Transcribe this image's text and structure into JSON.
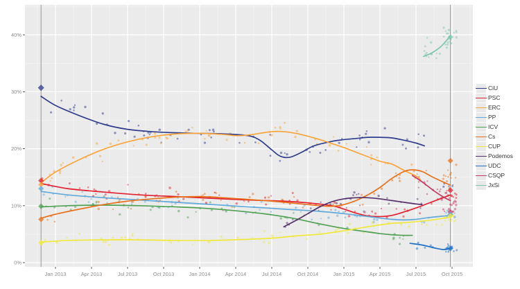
{
  "chart_data": {
    "type": "scatter",
    "title": "",
    "xlabel": "",
    "ylabel": "",
    "layout": {
      "grid": "on",
      "legend_position": "right",
      "panel_bg": "#EBEBEB",
      "x_range_months": [
        "2012-10-15",
        "2015-11-20"
      ],
      "ylim": [
        0,
        45
      ]
    },
    "x_axis": {
      "ticks": [
        {
          "date": "2013-01",
          "label": "Jan 2013"
        },
        {
          "date": "2013-04",
          "label": "Apr 2013"
        },
        {
          "date": "2013-07",
          "label": "Jul 2013"
        },
        {
          "date": "2013-10",
          "label": "Oct 2013"
        },
        {
          "date": "2014-01",
          "label": "Jan 2014"
        },
        {
          "date": "2014-04",
          "label": "Apr 2014"
        },
        {
          "date": "2014-07",
          "label": "Jul 2014"
        },
        {
          "date": "2014-10",
          "label": "Oct 2014"
        },
        {
          "date": "2015-01",
          "label": "Jan 2015"
        },
        {
          "date": "2015-04",
          "label": "Apr 2015"
        },
        {
          "date": "2015-07",
          "label": "Jul 2015"
        },
        {
          "date": "2015-10",
          "label": "Oct 2015"
        }
      ]
    },
    "y_axis": {
      "ticks": [
        {
          "pct": 0,
          "label": "0%"
        },
        {
          "pct": 10,
          "label": "10%"
        },
        {
          "pct": 20,
          "label": "20%"
        },
        {
          "pct": 30,
          "label": "30%"
        },
        {
          "pct": 40,
          "label": "40%"
        }
      ]
    },
    "reference_lines": [
      "2012-11-25",
      "2015-09-27"
    ],
    "elections": [
      {
        "date": "2012-11-25",
        "results": {
          "CiU": 30.7,
          "PSC": 14.4,
          "ERC": 13.7,
          "PP": 13.0,
          "ICV": 9.9,
          "Cs": 7.6,
          "CUP": 3.5
        }
      },
      {
        "date": "2015-09-27",
        "results": {
          "JxSi": 39.6,
          "Cs": 17.9,
          "PSC": 12.7,
          "CSQP": 8.9,
          "PP": 8.5,
          "CUP": 8.2,
          "UDC": 2.5
        }
      }
    ],
    "series": [
      {
        "name": "CiU",
        "color": "#2F3C8C",
        "trend": [
          [
            "2012-11-25",
            29.2
          ],
          [
            "2013-01",
            27.6
          ],
          [
            "2013-03",
            25.8
          ],
          [
            "2013-05",
            24.3
          ],
          [
            "2013-07",
            23.4
          ],
          [
            "2013-09",
            23.0
          ],
          [
            "2013-11",
            22.8
          ],
          [
            "2014-01",
            22.7
          ],
          [
            "2014-03",
            22.6
          ],
          [
            "2014-05",
            22.3
          ],
          [
            "2014-06",
            21.5
          ],
          [
            "2014-07",
            19.8
          ],
          [
            "2014-07-22",
            18.7
          ],
          [
            "2014-08-16",
            18.5
          ],
          [
            "2014-09-16",
            19.4
          ],
          [
            "2014-10-16",
            20.5
          ],
          [
            "2014-12",
            21.3
          ],
          [
            "2015-01",
            21.6
          ],
          [
            "2015-02",
            21.8
          ],
          [
            "2015-03",
            22.0
          ],
          [
            "2015-04",
            22.0
          ],
          [
            "2015-05",
            21.9
          ],
          [
            "2015-06",
            21.5
          ],
          [
            "2015-07",
            21.0
          ],
          [
            "2015-07-22",
            20.5
          ]
        ],
        "scatter": {
          "n": 64,
          "spread": 2.4,
          "end_cluster": {
            "n": 6,
            "pct": 13.0,
            "spread": 2.0
          }
        }
      },
      {
        "name": "PSC",
        "color": "#E2202F",
        "trend": [
          [
            "2012-11-25",
            13.9
          ],
          [
            "2013-02",
            13.0
          ],
          [
            "2013-05",
            12.4
          ],
          [
            "2013-08",
            11.9
          ],
          [
            "2013-11",
            11.6
          ],
          [
            "2014-02",
            11.3
          ],
          [
            "2014-05",
            11.0
          ],
          [
            "2014-08",
            10.8
          ],
          [
            "2014-10",
            10.5
          ],
          [
            "2014-12",
            10.0
          ],
          [
            "2015-01",
            9.4
          ],
          [
            "2015-02",
            8.7
          ],
          [
            "2015-03",
            8.2
          ],
          [
            "2015-04",
            8.1
          ],
          [
            "2015-05",
            8.3
          ],
          [
            "2015-06",
            8.9
          ],
          [
            "2015-07",
            9.6
          ],
          [
            "2015-08",
            10.4
          ],
          [
            "2015-09",
            11.2
          ],
          [
            "2015-09-27",
            11.9
          ]
        ],
        "scatter": {
          "n": 62,
          "spread": 1.6,
          "end_cluster": {
            "n": 10,
            "pct": 12.0,
            "spread": 1.2
          }
        }
      },
      {
        "name": "ERC",
        "color": "#FAA43A",
        "trend": [
          [
            "2012-11-25",
            14.0
          ],
          [
            "2013-01",
            15.9
          ],
          [
            "2013-03",
            18.1
          ],
          [
            "2013-05",
            19.9
          ],
          [
            "2013-07",
            21.2
          ],
          [
            "2013-09",
            22.1
          ],
          [
            "2013-11",
            22.6
          ],
          [
            "2014-01",
            22.7
          ],
          [
            "2014-03",
            22.5
          ],
          [
            "2014-04",
            22.3
          ],
          [
            "2014-05",
            22.4
          ],
          [
            "2014-06",
            22.7
          ],
          [
            "2014-07",
            23.0
          ],
          [
            "2014-08",
            23.0
          ],
          [
            "2014-09",
            22.7
          ],
          [
            "2014-10",
            22.2
          ],
          [
            "2014-11",
            21.6
          ],
          [
            "2014-12",
            20.9
          ],
          [
            "2015-01",
            20.2
          ],
          [
            "2015-02",
            19.4
          ],
          [
            "2015-03",
            18.6
          ],
          [
            "2015-04",
            17.8
          ],
          [
            "2015-05",
            17.3
          ],
          [
            "2015-06",
            16.2
          ],
          [
            "2015-07",
            15.2
          ],
          [
            "2015-07-12",
            14.6
          ]
        ],
        "scatter": {
          "n": 62,
          "spread": 2.0
        }
      },
      {
        "name": "PP",
        "color": "#62A9DB",
        "trend": [
          [
            "2012-11-25",
            12.5
          ],
          [
            "2013-02",
            11.9
          ],
          [
            "2013-05",
            11.4
          ],
          [
            "2013-08",
            11.0
          ],
          [
            "2013-11",
            10.6
          ],
          [
            "2014-02",
            10.2
          ],
          [
            "2014-05",
            9.8
          ],
          [
            "2014-08",
            9.4
          ],
          [
            "2014-11",
            9.0
          ],
          [
            "2015-01",
            8.6
          ],
          [
            "2015-03",
            8.1
          ],
          [
            "2015-05",
            7.6
          ],
          [
            "2015-06",
            7.5
          ],
          [
            "2015-07",
            7.6
          ],
          [
            "2015-08",
            7.9
          ],
          [
            "2015-09-27",
            8.3
          ]
        ],
        "scatter": {
          "n": 58,
          "spread": 1.6,
          "end_cluster": {
            "n": 8,
            "pct": 8.3,
            "spread": 1.0
          }
        }
      },
      {
        "name": "ICV",
        "color": "#4FA053",
        "trend": [
          [
            "2012-11-25",
            9.8
          ],
          [
            "2013-02",
            10.0
          ],
          [
            "2013-05",
            10.1
          ],
          [
            "2013-08",
            10.0
          ],
          [
            "2013-11",
            9.8
          ],
          [
            "2014-01",
            9.6
          ],
          [
            "2014-03",
            9.3
          ],
          [
            "2014-05",
            8.9
          ],
          [
            "2014-07",
            8.4
          ],
          [
            "2014-09",
            7.7
          ],
          [
            "2014-11",
            6.8
          ],
          [
            "2015-01",
            6.0
          ],
          [
            "2015-03",
            5.4
          ],
          [
            "2015-04",
            5.1
          ],
          [
            "2015-05",
            4.9
          ],
          [
            "2015-06",
            4.8
          ],
          [
            "2015-06-22",
            4.8
          ]
        ],
        "scatter": {
          "n": 46,
          "spread": 1.6
        }
      },
      {
        "name": "Cs",
        "color": "#E8721C",
        "trend": [
          [
            "2012-11-25",
            7.8
          ],
          [
            "2013-01",
            8.5
          ],
          [
            "2013-03",
            9.4
          ],
          [
            "2013-05",
            10.2
          ],
          [
            "2013-07",
            10.8
          ],
          [
            "2013-09",
            11.2
          ],
          [
            "2013-11",
            11.5
          ],
          [
            "2014-01",
            11.6
          ],
          [
            "2014-03",
            11.4
          ],
          [
            "2014-05",
            11.1
          ],
          [
            "2014-07",
            10.8
          ],
          [
            "2014-09",
            10.4
          ],
          [
            "2014-11",
            10.0
          ],
          [
            "2014-12",
            9.9
          ],
          [
            "2015-01",
            10.2
          ],
          [
            "2015-02",
            10.9
          ],
          [
            "2015-03",
            11.9
          ],
          [
            "2015-04",
            13.2
          ],
          [
            "2015-05",
            14.8
          ],
          [
            "2015-06",
            16.0
          ],
          [
            "2015-06-22",
            16.3
          ],
          [
            "2015-07-16",
            16.0
          ],
          [
            "2015-08-16",
            14.9
          ],
          [
            "2015-09-27",
            13.6
          ]
        ],
        "scatter": {
          "n": 60,
          "spread": 1.7,
          "end_cluster": {
            "n": 10,
            "pct": 15.5,
            "spread": 2.0
          }
        }
      },
      {
        "name": "CUP",
        "color": "#F0E93C",
        "trend": [
          [
            "2012-11-25",
            3.6
          ],
          [
            "2013-02",
            3.9
          ],
          [
            "2013-05",
            4.0
          ],
          [
            "2013-08",
            4.0
          ],
          [
            "2013-11",
            3.9
          ],
          [
            "2014-02",
            3.9
          ],
          [
            "2014-05",
            4.1
          ],
          [
            "2014-07",
            4.3
          ],
          [
            "2014-09",
            4.7
          ],
          [
            "2014-11",
            5.0
          ],
          [
            "2015-01",
            5.6
          ],
          [
            "2015-03",
            6.3
          ],
          [
            "2015-05",
            6.9
          ],
          [
            "2015-06",
            7.0
          ],
          [
            "2015-07",
            7.2
          ],
          [
            "2015-08",
            7.4
          ],
          [
            "2015-09",
            7.7
          ],
          [
            "2015-09-27",
            8.0
          ]
        ],
        "scatter": {
          "n": 55,
          "spread": 1.4,
          "end_cluster": {
            "n": 10,
            "pct": 7.8,
            "spread": 1.0
          }
        }
      },
      {
        "name": "Podemos",
        "color": "#56306B",
        "trend": [
          [
            "2014-08",
            6.3
          ],
          [
            "2014-09",
            7.4
          ],
          [
            "2014-10",
            8.6
          ],
          [
            "2014-11",
            9.8
          ],
          [
            "2014-12",
            10.7
          ],
          [
            "2015-01",
            11.2
          ],
          [
            "2015-02",
            11.4
          ],
          [
            "2015-03",
            11.4
          ],
          [
            "2015-04",
            11.2
          ],
          [
            "2015-05",
            10.9
          ],
          [
            "2015-06",
            10.6
          ],
          [
            "2015-07",
            10.3
          ],
          [
            "2015-07-16",
            10.2
          ]
        ],
        "scatter": {
          "n": 26,
          "spread": 1.6
        }
      },
      {
        "name": "UDC",
        "color": "#1E6FC5",
        "trend": [
          [
            "2015-06-16",
            3.4
          ],
          [
            "2015-07-16",
            3.1
          ],
          [
            "2015-08-16",
            2.6
          ],
          [
            "2015-09-10",
            2.3
          ],
          [
            "2015-09-27",
            2.5
          ]
        ],
        "scatter": {
          "n": 10,
          "spread": 0.9,
          "end_cluster": {
            "n": 9,
            "pct": 2.5,
            "spread": 0.8
          }
        }
      },
      {
        "name": "CSQP",
        "color": "#C63B64",
        "trend": [
          [
            "2015-06-22",
            15.3
          ],
          [
            "2015-07-16",
            14.2
          ],
          [
            "2015-08-16",
            12.6
          ],
          [
            "2015-09-10",
            11.5
          ],
          [
            "2015-09-27",
            10.9
          ]
        ],
        "scatter": {
          "n": 16,
          "spread": 1.5,
          "end_cluster": {
            "n": 12,
            "pct": 10.0,
            "spread": 1.5
          }
        }
      },
      {
        "name": "JxSi",
        "color": "#7DC6AD",
        "trend": [
          [
            "2015-07-20",
            36.2
          ],
          [
            "2015-08-10",
            36.8
          ],
          [
            "2015-09-01",
            37.8
          ],
          [
            "2015-09-16",
            38.9
          ],
          [
            "2015-09-27",
            39.9
          ]
        ],
        "scatter": {
          "n": 16,
          "spread": 2.2,
          "end_cluster": {
            "n": 16,
            "pct": 39.5,
            "spread": 2.2
          }
        }
      }
    ]
  },
  "legend": {
    "title": ""
  },
  "colors": {
    "background": "#FFFFFF",
    "panel_bg": "#EBEBEB",
    "grid_major": "#FFFFFF",
    "grid_minor": "#F5F5F5",
    "reference_line": "#969696",
    "tick_text": "#8C8C8C",
    "tick_mark": "#333333",
    "legend_text": "#333333",
    "legend_key_bg": "#E9E9E9"
  },
  "scatter_seed": 20150927
}
